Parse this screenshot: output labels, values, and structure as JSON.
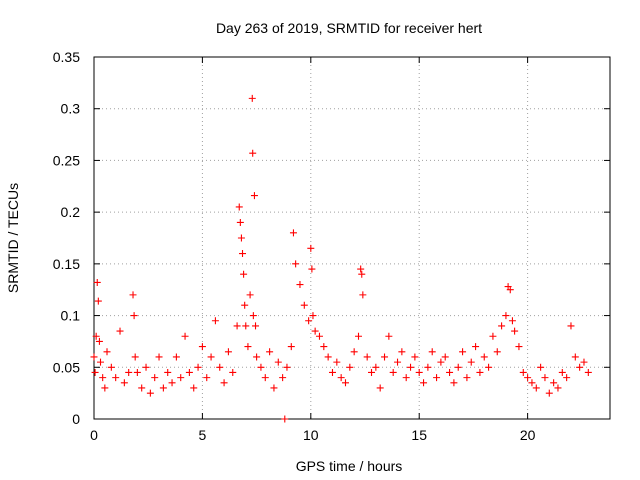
{
  "chart_data": {
    "type": "scatter",
    "title": "Day 263 of 2019, SRMTID for receiver hert",
    "xlabel": "GPS time / hours",
    "ylabel": "SRMTID / TECUs",
    "xlim": [
      0,
      23.8
    ],
    "ylim": [
      0,
      0.35
    ],
    "x_ticks": [
      0,
      5,
      10,
      15,
      20
    ],
    "x_tick_labels": [
      "0",
      "5",
      "10",
      "15",
      "20"
    ],
    "y_ticks": [
      0,
      0.05,
      0.1,
      0.15,
      0.2,
      0.25,
      0.3,
      0.35
    ],
    "y_tick_labels": [
      "0",
      "0.05",
      "0.1",
      "0.15",
      "0.2",
      "0.25",
      "0.3",
      "0.35"
    ],
    "grid": true,
    "marker": "+",
    "color": "#ff0000",
    "series": [
      {
        "name": "SRMTID",
        "x": [
          0.0,
          0.05,
          0.1,
          0.15,
          0.2,
          0.25,
          0.3,
          0.4,
          0.5,
          0.6,
          0.8,
          1.0,
          1.2,
          1.4,
          1.6,
          1.8,
          1.85,
          1.9,
          2.0,
          2.2,
          2.4,
          2.6,
          2.8,
          3.0,
          3.2,
          3.4,
          3.6,
          3.8,
          4.0,
          4.2,
          4.4,
          4.6,
          4.8,
          5.0,
          5.2,
          5.4,
          5.6,
          5.8,
          6.0,
          6.2,
          6.4,
          6.6,
          6.7,
          6.75,
          6.8,
          6.85,
          6.9,
          6.95,
          7.0,
          7.1,
          7.2,
          7.3,
          7.32,
          7.35,
          7.4,
          7.45,
          7.5,
          7.7,
          7.9,
          8.1,
          8.3,
          8.5,
          8.7,
          8.8,
          8.9,
          9.1,
          9.2,
          9.3,
          9.5,
          9.7,
          9.9,
          10.0,
          10.05,
          10.1,
          10.2,
          10.4,
          10.6,
          10.8,
          11.0,
          11.2,
          11.4,
          11.6,
          11.8,
          12.0,
          12.2,
          12.3,
          12.35,
          12.4,
          12.6,
          12.8,
          13.0,
          13.2,
          13.4,
          13.6,
          13.8,
          14.0,
          14.2,
          14.4,
          14.6,
          14.8,
          15.0,
          15.2,
          15.4,
          15.6,
          15.8,
          16.0,
          16.2,
          16.4,
          16.6,
          16.8,
          17.0,
          17.2,
          17.4,
          17.6,
          17.8,
          18.0,
          18.2,
          18.4,
          18.6,
          18.8,
          19.0,
          19.1,
          19.2,
          19.3,
          19.4,
          19.6,
          19.8,
          20.0,
          20.2,
          20.4,
          20.6,
          20.8,
          21.0,
          21.2,
          21.4,
          21.6,
          21.8,
          22.0,
          22.2,
          22.4,
          22.6,
          22.8
        ],
        "y": [
          0.06,
          0.045,
          0.08,
          0.132,
          0.114,
          0.075,
          0.055,
          0.04,
          0.03,
          0.065,
          0.05,
          0.04,
          0.085,
          0.035,
          0.045,
          0.12,
          0.1,
          0.06,
          0.045,
          0.03,
          0.05,
          0.025,
          0.04,
          0.06,
          0.03,
          0.045,
          0.035,
          0.06,
          0.04,
          0.08,
          0.045,
          0.03,
          0.05,
          0.07,
          0.04,
          0.06,
          0.095,
          0.05,
          0.035,
          0.065,
          0.045,
          0.09,
          0.205,
          0.19,
          0.175,
          0.16,
          0.14,
          0.11,
          0.09,
          0.07,
          0.12,
          0.31,
          0.257,
          0.1,
          0.216,
          0.09,
          0.06,
          0.05,
          0.04,
          0.065,
          0.03,
          0.055,
          0.04,
          0.0,
          0.05,
          0.07,
          0.18,
          0.15,
          0.13,
          0.11,
          0.095,
          0.165,
          0.145,
          0.1,
          0.085,
          0.08,
          0.07,
          0.06,
          0.045,
          0.055,
          0.04,
          0.035,
          0.05,
          0.065,
          0.08,
          0.145,
          0.14,
          0.12,
          0.06,
          0.045,
          0.05,
          0.03,
          0.06,
          0.08,
          0.045,
          0.055,
          0.065,
          0.04,
          0.05,
          0.06,
          0.045,
          0.035,
          0.05,
          0.065,
          0.04,
          0.055,
          0.06,
          0.045,
          0.035,
          0.05,
          0.065,
          0.04,
          0.055,
          0.07,
          0.045,
          0.06,
          0.05,
          0.08,
          0.065,
          0.09,
          0.1,
          0.128,
          0.125,
          0.095,
          0.085,
          0.07,
          0.045,
          0.04,
          0.035,
          0.03,
          0.05,
          0.04,
          0.025,
          0.035,
          0.03,
          0.045,
          0.04,
          0.09,
          0.06,
          0.05,
          0.055,
          0.045
        ]
      }
    ]
  }
}
